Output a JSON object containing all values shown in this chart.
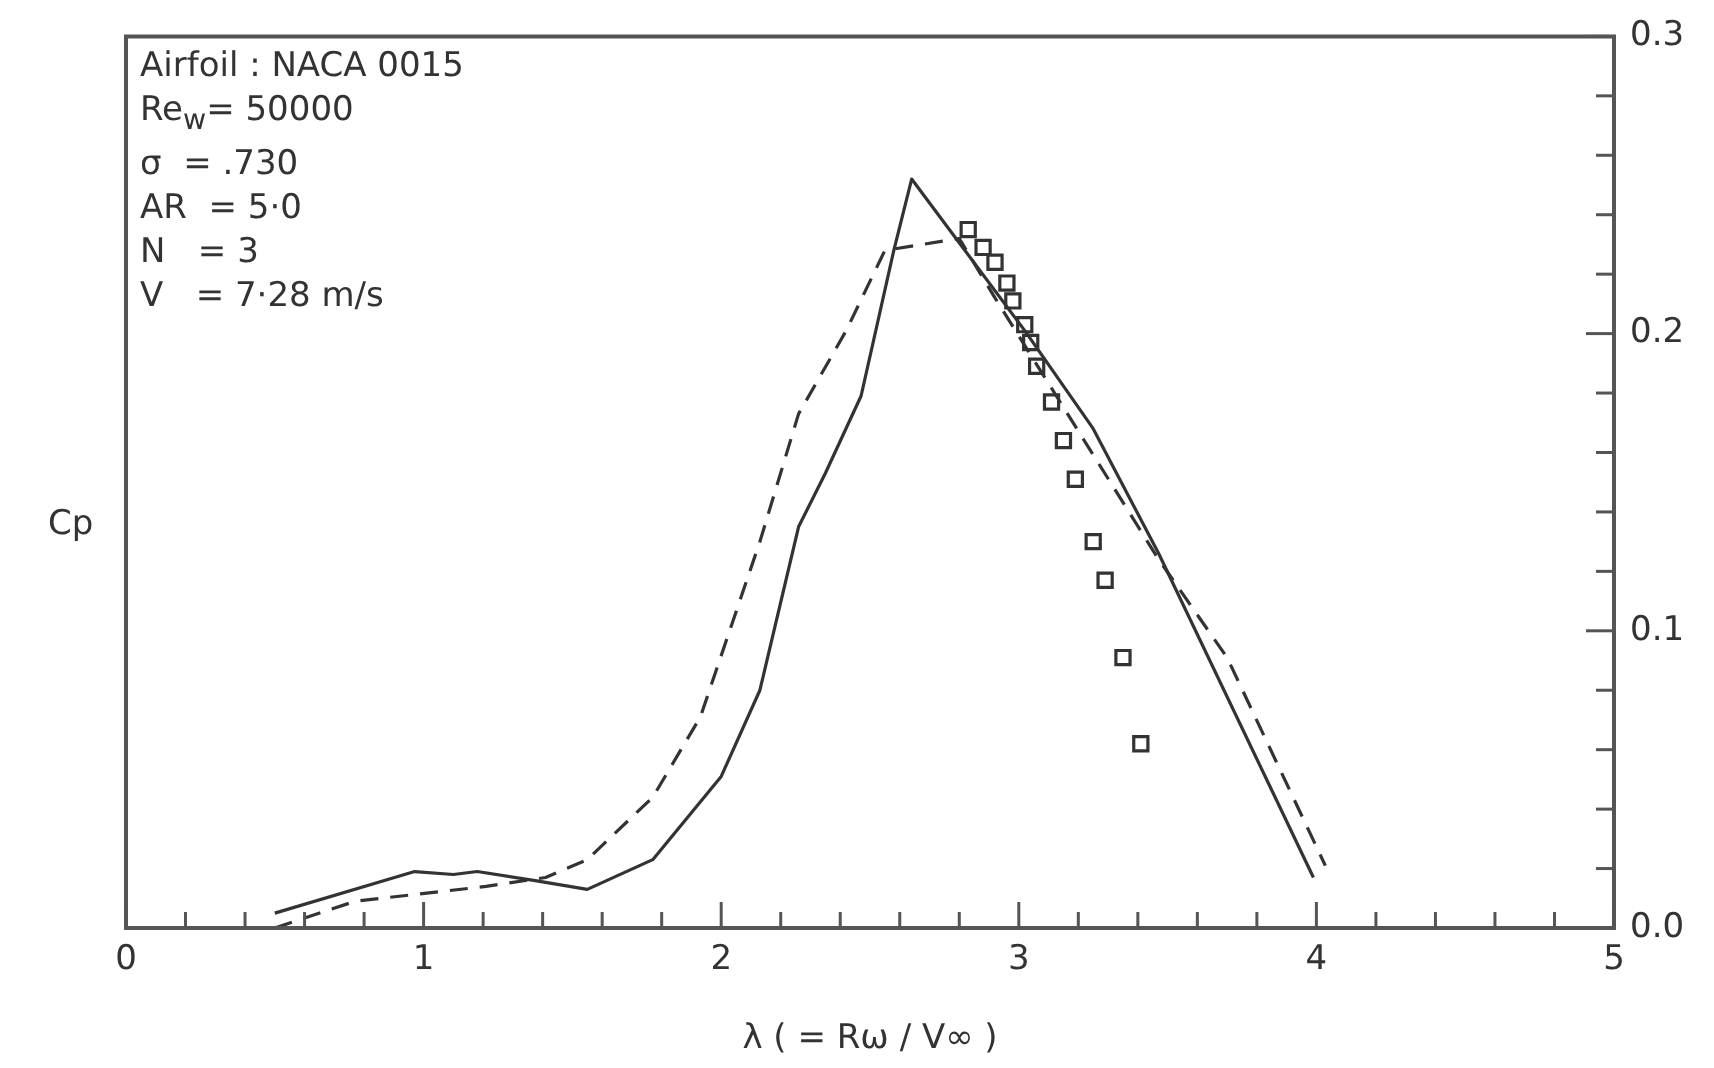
{
  "chart_data": {
    "type": "line",
    "xlabel": "λ ( = Rω / V∞ )",
    "ylabel": "Cp",
    "xlim": [
      0,
      5
    ],
    "ylim": [
      0,
      0.3
    ],
    "xticks": [
      0,
      {
        "value": 0.2,
        "label": null
      },
      {
        "value": 0.4,
        "label": null
      },
      {
        "value": 0.6,
        "label": null
      },
      {
        "value": 0.8,
        "label": null
      },
      1,
      {
        "value": 1.2,
        "label": null
      },
      {
        "value": 1.4,
        "label": null
      },
      {
        "value": 1.6,
        "label": null
      },
      {
        "value": 1.8,
        "label": null
      },
      2,
      {
        "value": 2.2,
        "label": null
      },
      {
        "value": 2.4,
        "label": null
      },
      {
        "value": 2.6,
        "label": null
      },
      {
        "value": 2.8,
        "label": null
      },
      3,
      {
        "value": 3.2,
        "label": null
      },
      {
        "value": 3.4,
        "label": null
      },
      {
        "value": 3.6,
        "label": null
      },
      {
        "value": 3.8,
        "label": null
      },
      4,
      {
        "value": 4.2,
        "label": null
      },
      {
        "value": 4.4,
        "label": null
      },
      {
        "value": 4.6,
        "label": null
      },
      {
        "value": 4.8,
        "label": null
      },
      5
    ],
    "yticks": [
      {
        "value": 0,
        "label": "0.0"
      },
      {
        "value": 0.02,
        "label": null
      },
      {
        "value": 0.04,
        "label": null
      },
      {
        "value": 0.06,
        "label": null
      },
      {
        "value": 0.08,
        "label": null
      },
      0.1,
      {
        "value": 0.12,
        "label": null
      },
      {
        "value": 0.14,
        "label": null
      },
      {
        "value": 0.16,
        "label": null
      },
      {
        "value": 0.18,
        "label": null
      },
      0.2,
      {
        "value": 0.22,
        "label": null
      },
      {
        "value": 0.24,
        "label": null
      },
      {
        "value": 0.26,
        "label": null
      },
      {
        "value": 0.28,
        "label": null
      },
      0.3
    ],
    "grid": false,
    "legend": false,
    "annotations": [
      "Airfoil : NACA 0015",
      "Re$_{w}$= 50000",
      "σ  = .730",
      "AR  = 5·0",
      "N   = 3",
      "V   = 7·28 m/s"
    ],
    "series": [
      {
        "type": "line",
        "color": "#333333",
        "line_style": "solid",
        "marker": "none",
        "x": [
          0.5,
          0.97,
          1.1,
          1.18,
          1.37,
          1.55,
          1.77,
          2.0,
          2.13,
          2.26,
          2.35,
          2.47,
          2.58,
          2.64,
          3.02,
          3.25,
          3.47,
          3.99
        ],
        "values": [
          0.005,
          0.019,
          0.018,
          0.019,
          0.016,
          0.013,
          0.023,
          0.051,
          0.08,
          0.135,
          0.153,
          0.179,
          0.228,
          0.252,
          0.201,
          0.168,
          0.126,
          0.017
        ]
      },
      {
        "type": "line",
        "color": "#333333",
        "line_style": "dashed",
        "marker": "none",
        "x": [
          0.5,
          0.77,
          1.21,
          1.41,
          1.55,
          1.77,
          1.93,
          2.13,
          2.26,
          2.42,
          2.55,
          2.8,
          2.92,
          3.47,
          3.7,
          4.03
        ],
        "values": [
          0.0,
          0.009,
          0.014,
          0.017,
          0.023,
          0.044,
          0.071,
          0.13,
          0.173,
          0.201,
          0.228,
          0.232,
          0.212,
          0.124,
          0.091,
          0.021
        ]
      },
      {
        "type": "scatter",
        "color": "#333333",
        "marker": "square",
        "x": [
          2.83,
          2.88,
          2.92,
          2.96,
          2.98,
          3.02,
          3.04,
          3.06,
          3.11,
          3.15,
          3.19,
          3.25,
          3.29,
          3.35,
          3.41
        ],
        "values": [
          0.235,
          0.229,
          0.224,
          0.217,
          0.211,
          0.203,
          0.197,
          0.189,
          0.177,
          0.164,
          0.151,
          0.13,
          0.117,
          0.091,
          0.062
        ]
      }
    ]
  }
}
